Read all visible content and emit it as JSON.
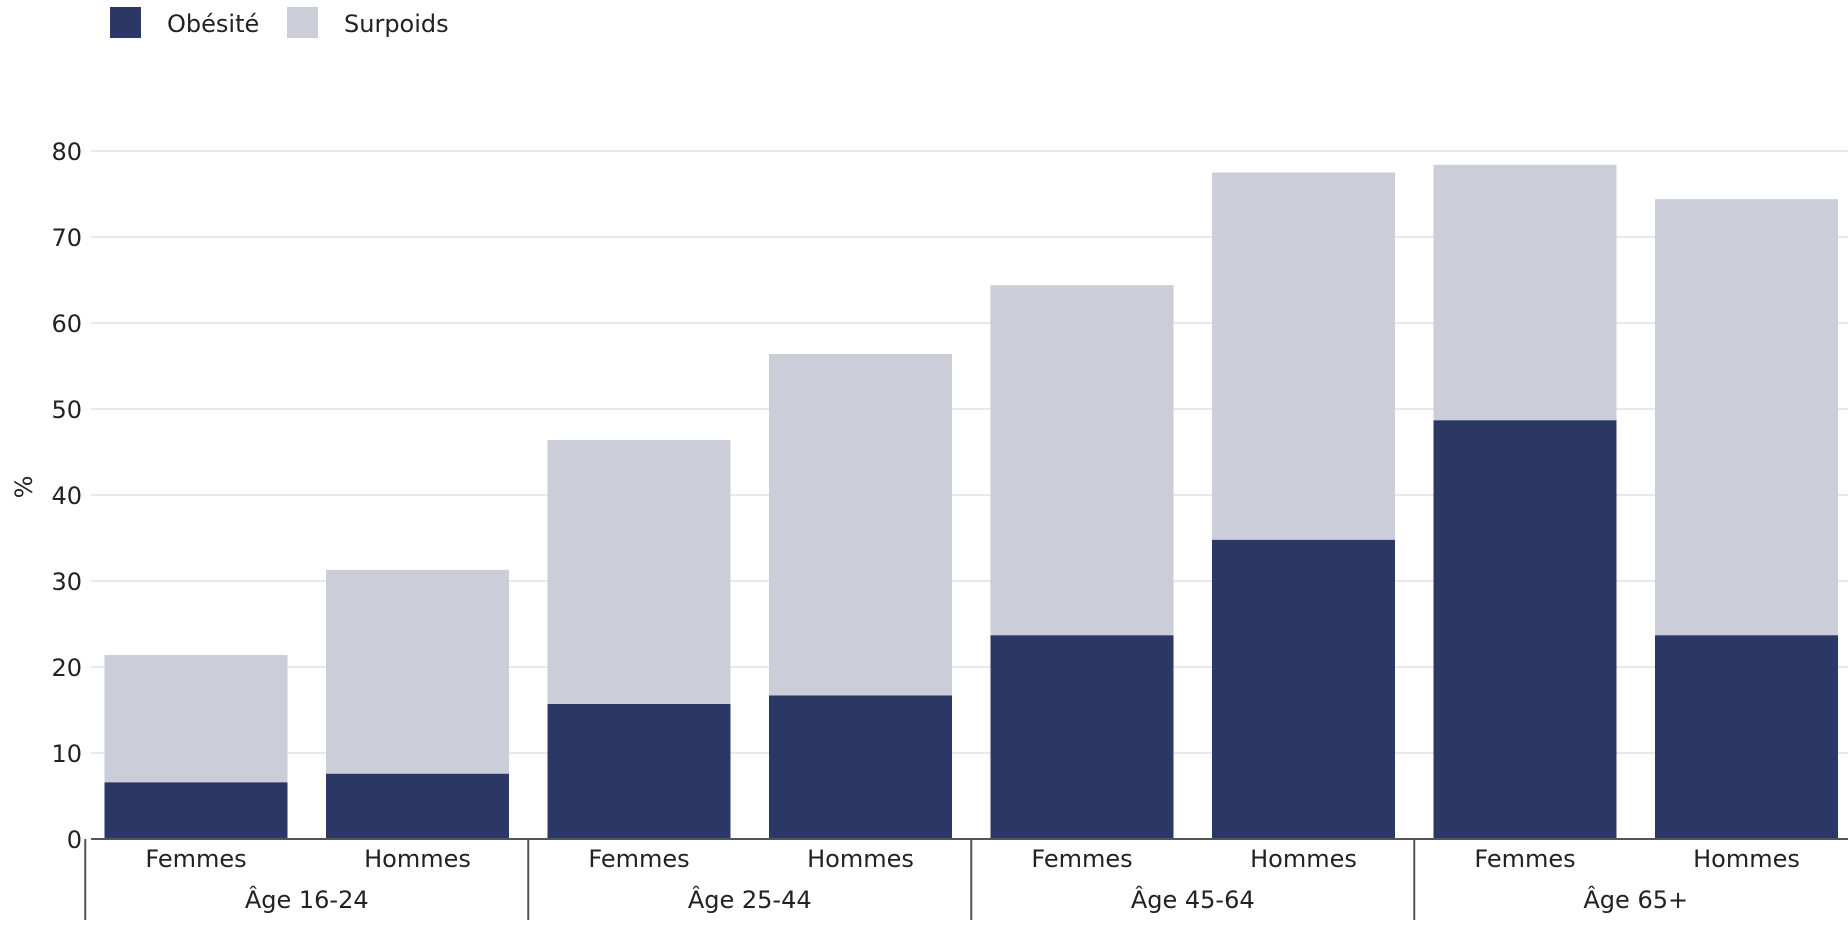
{
  "chart_data": {
    "type": "bar",
    "stacked": true,
    "ylabel": "%",
    "ylim": [
      0,
      80
    ],
    "yticks": [
      0,
      10,
      20,
      30,
      40,
      50,
      60,
      70,
      80
    ],
    "grid": true,
    "legend_position": "top-left",
    "categories": [
      {
        "sex": "Femmes",
        "group": "Âge 16-24"
      },
      {
        "sex": "Hommes",
        "group": "Âge 16-24"
      },
      {
        "sex": "Femmes",
        "group": "Âge 25-44"
      },
      {
        "sex": "Hommes",
        "group": "Âge 25-44"
      },
      {
        "sex": "Femmes",
        "group": "Âge 45-64"
      },
      {
        "sex": "Hommes",
        "group": "Âge 45-64"
      },
      {
        "sex": "Femmes",
        "group": "Âge 65+"
      },
      {
        "sex": "Hommes",
        "group": "Âge 65+"
      }
    ],
    "groups": [
      "Âge 16-24",
      "Âge 25-44",
      "Âge 45-64",
      "Âge 65+"
    ],
    "series": [
      {
        "name": "Obésité",
        "color": "#2b3764",
        "values": [
          6.6,
          7.6,
          15.7,
          16.7,
          23.7,
          34.8,
          48.7,
          23.7
        ]
      },
      {
        "name": "Surpoids",
        "color": "#cbcdd9",
        "values": [
          14.8,
          23.7,
          30.7,
          39.7,
          40.7,
          42.7,
          29.7,
          50.7
        ]
      }
    ]
  }
}
